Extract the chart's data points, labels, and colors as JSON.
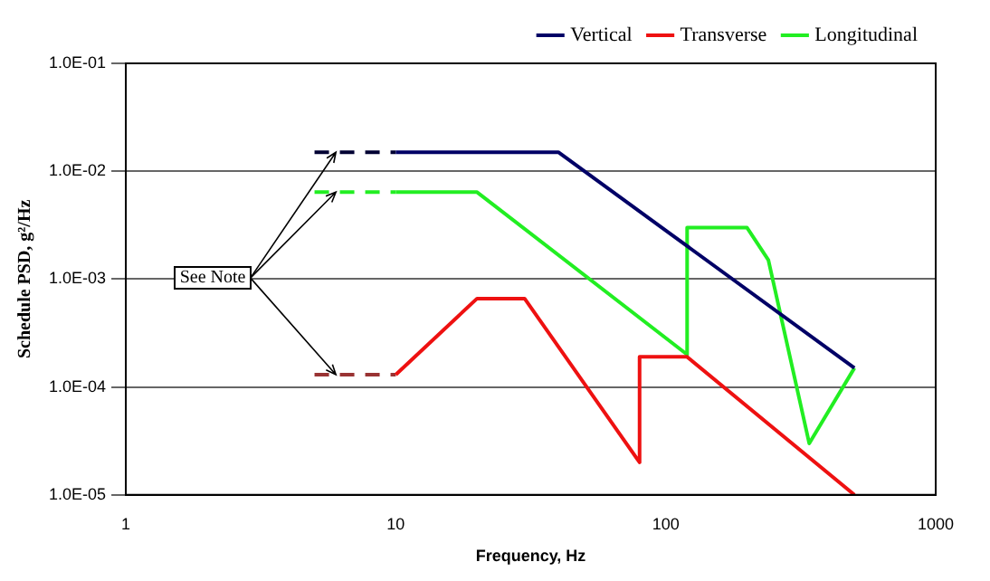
{
  "chart_data": {
    "type": "line",
    "xlabel": "Frequency, Hz",
    "ylabel": "Schedule PSD, g²/Hz",
    "log": "xy",
    "grid": "y",
    "legend": "top right",
    "marker": "none",
    "xlim": [
      1,
      1000
    ],
    "xticks": [
      1,
      10,
      100,
      1000
    ],
    "ylim": [
      1e-05,
      0.1
    ],
    "yticks": [
      {
        "value": 1e-05,
        "label": "1.0E-05"
      },
      {
        "value": 0.0001,
        "label": "1.0E-04"
      },
      {
        "value": 0.001,
        "label": "1.0E-03"
      },
      {
        "value": 0.01,
        "label": "1.0E-02"
      },
      {
        "value": 0.1,
        "label": "1.0E-01"
      }
    ],
    "annotations": [
      {
        "text": "See Note",
        "x": 6,
        "y": 0.0064
      }
    ],
    "series": [
      {
        "name": "Vertical",
        "color": "#000066",
        "x": [
          10,
          40,
          500
        ],
        "values": [
          0.015,
          0.015,
          0.00015
        ]
      },
      {
        "name": "Transverse",
        "color": "#ee1111",
        "x": [
          10,
          20,
          30,
          80,
          80,
          120,
          500
        ],
        "values": [
          0.00013,
          0.00066,
          0.00066,
          2e-05,
          0.00019,
          0.00019,
          1e-05
        ]
      },
      {
        "name": "Longitudinal",
        "color": "#22ee22",
        "x": [
          10,
          20,
          120,
          120,
          200,
          240,
          340,
          500
        ],
        "values": [
          0.0064,
          0.0064,
          0.0002,
          0.003,
          0.003,
          0.0015,
          3e-05,
          0.00015
        ]
      },
      {
        "color": "#000033",
        "line_style": "dashed",
        "x": [
          5,
          10
        ],
        "values": [
          0.015,
          0.015
        ]
      },
      {
        "color": "#22ee22",
        "line_style": "dashed",
        "x": [
          5,
          10
        ],
        "values": [
          0.0064,
          0.0064
        ]
      },
      {
        "color": "#993333",
        "line_style": "dashed",
        "x": [
          5,
          10
        ],
        "values": [
          0.00013,
          0.00013
        ]
      }
    ]
  }
}
